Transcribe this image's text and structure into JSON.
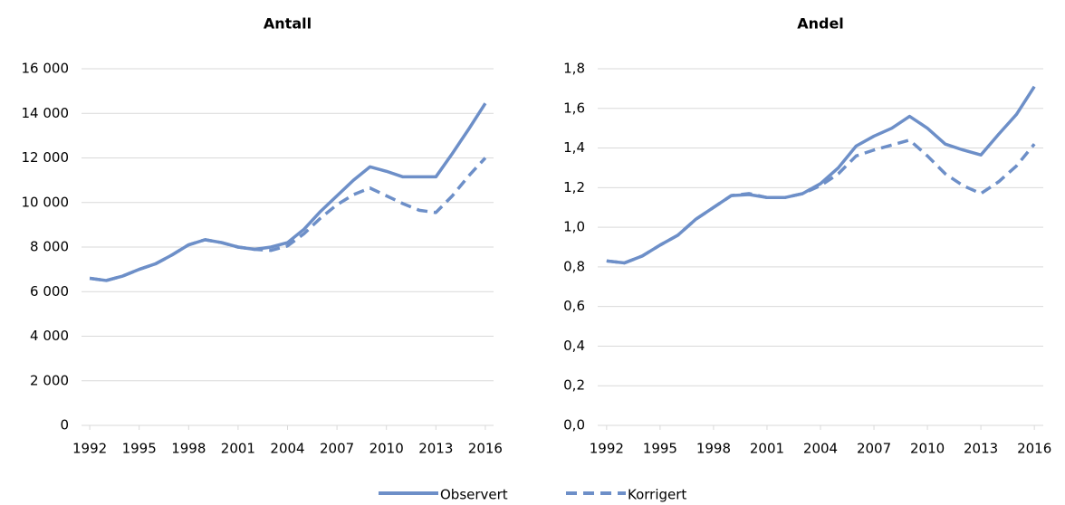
{
  "chart_data": [
    {
      "type": "line",
      "title": "Antall",
      "x": [
        1992,
        1993,
        1994,
        1995,
        1996,
        1997,
        1998,
        1999,
        2000,
        2001,
        2002,
        2003,
        2004,
        2005,
        2006,
        2007,
        2008,
        2009,
        2010,
        2011,
        2012,
        2013,
        2014,
        2015,
        2016
      ],
      "xlim": [
        1991.5,
        2016.5
      ],
      "xticks": [
        1992,
        1995,
        1998,
        2001,
        2004,
        2007,
        2010,
        2013,
        2016
      ],
      "ylim": [
        0,
        16000
      ],
      "yticks": [
        0,
        {
          "value": 2000,
          "label": "2 000"
        },
        {
          "value": 4000,
          "label": "4 000"
        },
        {
          "value": 6000,
          "label": "6 000"
        },
        {
          "value": 8000,
          "label": "8 000"
        },
        {
          "value": 10000,
          "label": "10 000"
        },
        {
          "value": 12000,
          "label": "12 000"
        },
        {
          "value": 14000,
          "label": "14 000"
        },
        {
          "value": 16000,
          "label": "16 000"
        }
      ],
      "grid": true,
      "legend": "bottom",
      "series": [
        {
          "name": "Observert",
          "color": "#6d8fc8",
          "dash": false,
          "values": [
            6600,
            6500,
            6700,
            7000,
            7250,
            7650,
            8100,
            8330,
            8200,
            8000,
            7900,
            8000,
            8200,
            8800,
            9600,
            10300,
            11000,
            11600,
            11400,
            11150,
            11150,
            11150,
            12200,
            13300,
            14450
          ]
        },
        {
          "name": "Korrigert",
          "color": "#6d8fc8",
          "dash": true,
          "values": [
            6600,
            6500,
            6700,
            7000,
            7250,
            7650,
            8100,
            8330,
            8200,
            8000,
            7900,
            7850,
            8050,
            8600,
            9300,
            9900,
            10350,
            10650,
            10300,
            9950,
            9650,
            9550,
            10300,
            11200,
            12000
          ]
        }
      ]
    },
    {
      "type": "line",
      "title": "Andel",
      "x": [
        1992,
        1993,
        1994,
        1995,
        1996,
        1997,
        1998,
        1999,
        2000,
        2001,
        2002,
        2003,
        2004,
        2005,
        2006,
        2007,
        2008,
        2009,
        2010,
        2011,
        2012,
        2013,
        2014,
        2015,
        2016
      ],
      "xlim": [
        1991.5,
        2016.5
      ],
      "xticks": [
        1992,
        1995,
        1998,
        2001,
        2004,
        2007,
        2010,
        2013,
        2016
      ],
      "ylim": [
        0,
        1.8
      ],
      "yticks": [
        {
          "value": 0,
          "label": "0,0"
        },
        {
          "value": 0.2,
          "label": "0,2"
        },
        {
          "value": 0.4,
          "label": "0,4"
        },
        {
          "value": 0.6,
          "label": "0,6"
        },
        {
          "value": 0.8,
          "label": "0,8"
        },
        {
          "value": 1.0,
          "label": "1,0"
        },
        {
          "value": 1.2,
          "label": "1,2"
        },
        {
          "value": 1.4,
          "label": "1,4"
        },
        {
          "value": 1.6,
          "label": "1,6"
        },
        {
          "value": 1.8,
          "label": "1,8"
        }
      ],
      "grid": true,
      "series": [
        {
          "name": "Observert",
          "color": "#6d8fc8",
          "dash": false,
          "values": [
            0.83,
            0.82,
            0.855,
            0.91,
            0.96,
            1.04,
            1.1,
            1.16,
            1.165,
            1.15,
            1.15,
            1.17,
            1.22,
            1.3,
            1.41,
            1.46,
            1.5,
            1.56,
            1.5,
            1.42,
            1.39,
            1.365,
            1.47,
            1.57,
            1.71
          ]
        },
        {
          "name": "Korrigert",
          "color": "#6d8fc8",
          "dash": true,
          "values": [
            0.83,
            0.82,
            0.855,
            0.91,
            0.96,
            1.04,
            1.1,
            1.16,
            1.17,
            1.15,
            1.15,
            1.17,
            1.21,
            1.27,
            1.36,
            1.39,
            1.415,
            1.44,
            1.36,
            1.27,
            1.21,
            1.17,
            1.23,
            1.31,
            1.42
          ]
        }
      ]
    }
  ]
}
